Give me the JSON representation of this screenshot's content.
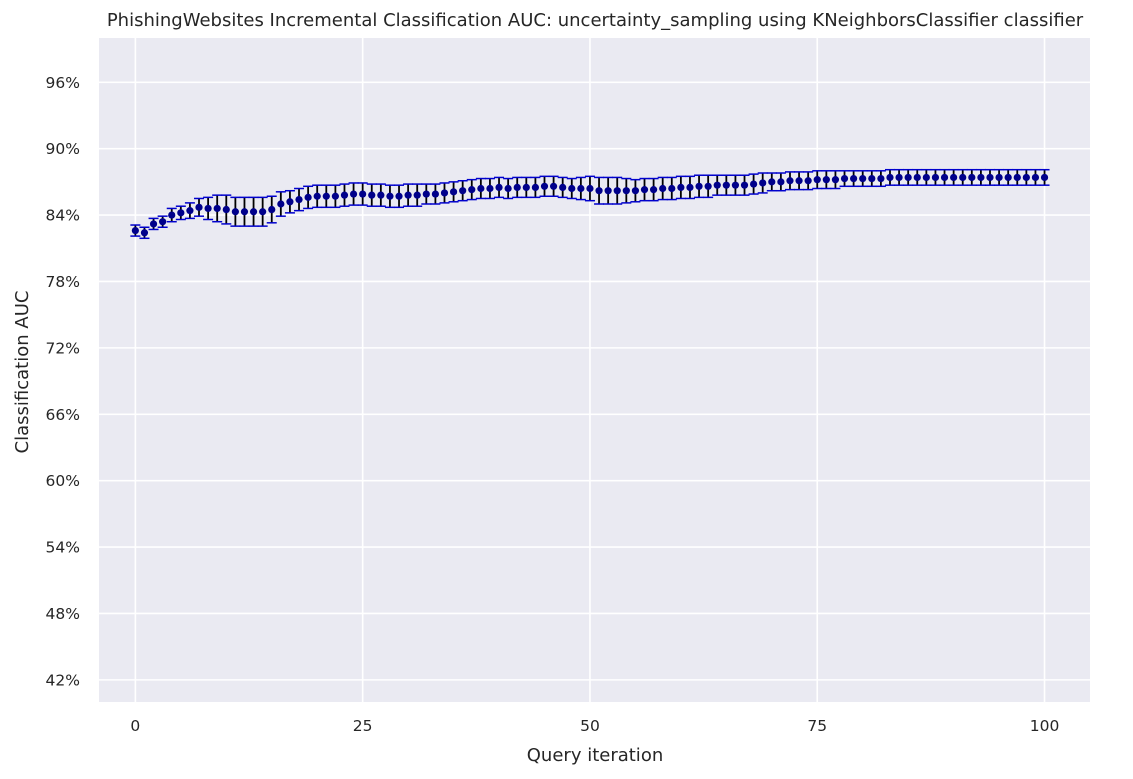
{
  "chart_data": {
    "type": "scatter",
    "title": "PhishingWebsites Incremental Classification AUC: uncertainty_sampling using KNeighborsClassifier classifier",
    "xlabel": "Query iteration",
    "ylabel": "Classification AUC",
    "xlim": [
      -4,
      105
    ],
    "ylim": [
      0.4,
      1.0
    ],
    "x_ticks": [
      0,
      25,
      50,
      75,
      100
    ],
    "x_tick_labels": [
      "0",
      "25",
      "50",
      "75",
      "100"
    ],
    "y_ticks": [
      0.42,
      0.48,
      0.54,
      0.6,
      0.66,
      0.72,
      0.78,
      0.84,
      0.9,
      0.96
    ],
    "y_tick_labels": [
      "42%",
      "48%",
      "54%",
      "60%",
      "66%",
      "72%",
      "78%",
      "84%",
      "90%",
      "96%"
    ],
    "grid": true,
    "error_bars": true,
    "series": [
      {
        "x": [
          0,
          1,
          2,
          3,
          4,
          5,
          6,
          7,
          8,
          9,
          10,
          11,
          12,
          13,
          14,
          15,
          16,
          17,
          18,
          19,
          20,
          21,
          22,
          23,
          24,
          25,
          26,
          27,
          28,
          29,
          30,
          31,
          32,
          33,
          34,
          35,
          36,
          37,
          38,
          39,
          40,
          41,
          42,
          43,
          44,
          45,
          46,
          47,
          48,
          49,
          50,
          51,
          52,
          53,
          54,
          55,
          56,
          57,
          58,
          59,
          60,
          61,
          62,
          63,
          64,
          65,
          66,
          67,
          68,
          69,
          70,
          71,
          72,
          73,
          74,
          75,
          76,
          77,
          78,
          79,
          80,
          81,
          82,
          83,
          84,
          85,
          86,
          87,
          88,
          89,
          90,
          91,
          92,
          93,
          94,
          95,
          96,
          97,
          98,
          99,
          100
        ],
        "values": [
          0.826,
          0.824,
          0.832,
          0.834,
          0.84,
          0.842,
          0.844,
          0.847,
          0.846,
          0.846,
          0.845,
          0.843,
          0.843,
          0.843,
          0.843,
          0.845,
          0.85,
          0.852,
          0.854,
          0.856,
          0.857,
          0.857,
          0.857,
          0.858,
          0.859,
          0.859,
          0.858,
          0.858,
          0.857,
          0.857,
          0.858,
          0.858,
          0.859,
          0.859,
          0.86,
          0.861,
          0.862,
          0.863,
          0.864,
          0.864,
          0.865,
          0.864,
          0.865,
          0.865,
          0.865,
          0.866,
          0.866,
          0.865,
          0.864,
          0.864,
          0.864,
          0.862,
          0.862,
          0.862,
          0.862,
          0.862,
          0.863,
          0.863,
          0.864,
          0.864,
          0.865,
          0.865,
          0.866,
          0.866,
          0.867,
          0.867,
          0.867,
          0.867,
          0.868,
          0.869,
          0.87,
          0.87,
          0.871,
          0.871,
          0.871,
          0.872,
          0.872,
          0.872,
          0.873,
          0.873,
          0.873,
          0.873,
          0.873,
          0.874,
          0.874,
          0.874,
          0.874,
          0.874,
          0.874,
          0.874,
          0.874,
          0.874,
          0.874,
          0.874,
          0.874,
          0.874,
          0.874,
          0.874,
          0.874,
          0.874,
          0.874
        ],
        "errors": [
          0.005,
          0.005,
          0.005,
          0.005,
          0.006,
          0.006,
          0.007,
          0.008,
          0.01,
          0.012,
          0.013,
          0.013,
          0.013,
          0.013,
          0.013,
          0.012,
          0.011,
          0.01,
          0.01,
          0.01,
          0.01,
          0.01,
          0.01,
          0.01,
          0.01,
          0.01,
          0.01,
          0.01,
          0.01,
          0.01,
          0.01,
          0.01,
          0.009,
          0.009,
          0.009,
          0.009,
          0.009,
          0.009,
          0.009,
          0.009,
          0.009,
          0.009,
          0.009,
          0.009,
          0.009,
          0.009,
          0.009,
          0.009,
          0.009,
          0.01,
          0.011,
          0.012,
          0.012,
          0.012,
          0.011,
          0.01,
          0.01,
          0.01,
          0.01,
          0.01,
          0.01,
          0.01,
          0.01,
          0.01,
          0.009,
          0.009,
          0.009,
          0.009,
          0.009,
          0.009,
          0.008,
          0.008,
          0.008,
          0.008,
          0.008,
          0.008,
          0.008,
          0.008,
          0.007,
          0.007,
          0.007,
          0.007,
          0.007,
          0.007,
          0.007,
          0.007,
          0.007,
          0.007,
          0.007,
          0.007,
          0.007,
          0.007,
          0.007,
          0.007,
          0.007,
          0.007,
          0.007,
          0.007,
          0.007,
          0.007,
          0.007
        ]
      }
    ]
  },
  "colors": {
    "plot_background": "#EAEAF2",
    "grid": "#FFFFFF",
    "marker": "#00008B",
    "error_bar": "#000000",
    "cap": "#0000CD"
  }
}
